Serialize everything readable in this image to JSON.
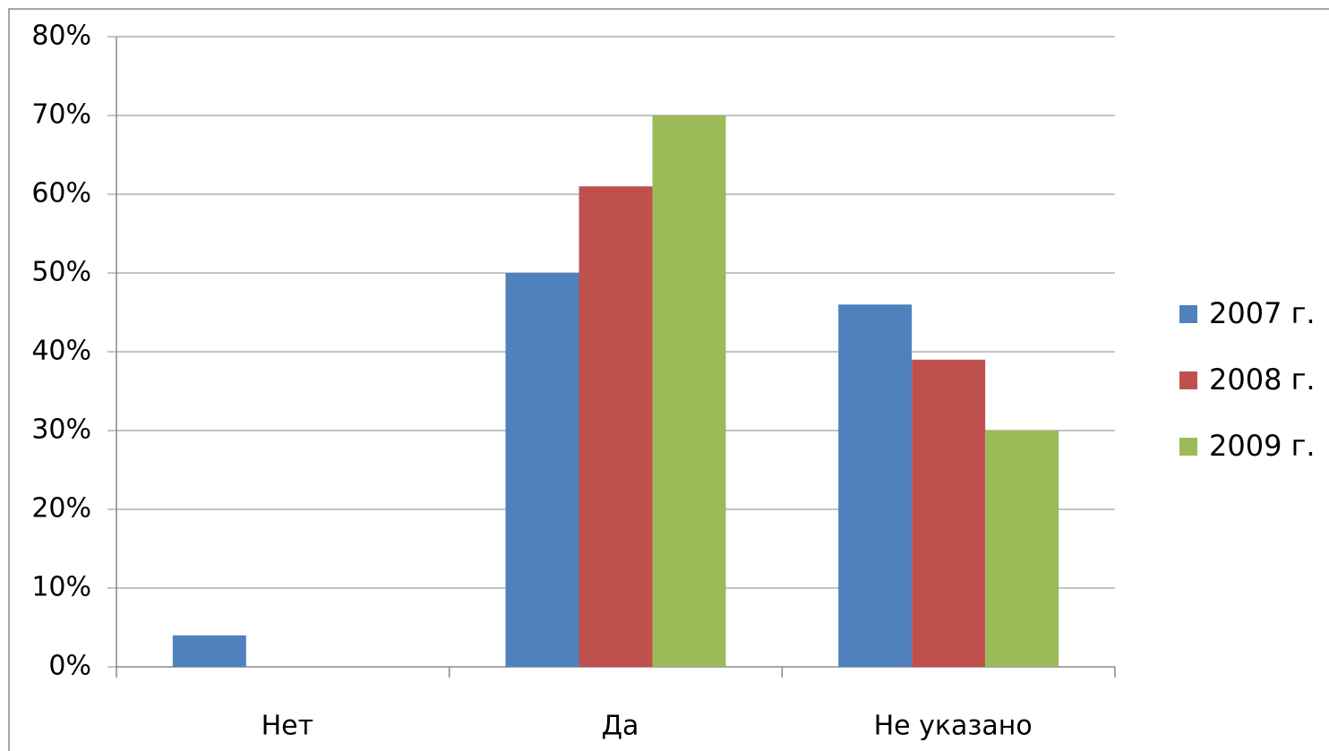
{
  "chart_data": {
    "type": "bar",
    "categories": [
      "Нет",
      "Да",
      "Не указано"
    ],
    "series": [
      {
        "name": "2007 г.",
        "color": "#4f81bd",
        "values": [
          4,
          50,
          46
        ]
      },
      {
        "name": "2008 г.",
        "color": "#c0504d",
        "values": [
          0,
          61,
          39
        ]
      },
      {
        "name": "2009 г.",
        "color": "#9bbb59",
        "values": [
          0,
          70,
          30
        ]
      }
    ],
    "ylim": [
      0,
      80
    ],
    "yticks": [
      {
        "value": 0,
        "label": "0%"
      },
      {
        "value": 10,
        "label": "10%"
      },
      {
        "value": 20,
        "label": "20%"
      },
      {
        "value": 30,
        "label": "30%"
      },
      {
        "value": 40,
        "label": "40%"
      },
      {
        "value": 50,
        "label": "50%"
      },
      {
        "value": 60,
        "label": "60%"
      },
      {
        "value": 70,
        "label": "70%"
      },
      {
        "value": 80,
        "label": "80%"
      }
    ],
    "grid": true,
    "legend": "right"
  }
}
